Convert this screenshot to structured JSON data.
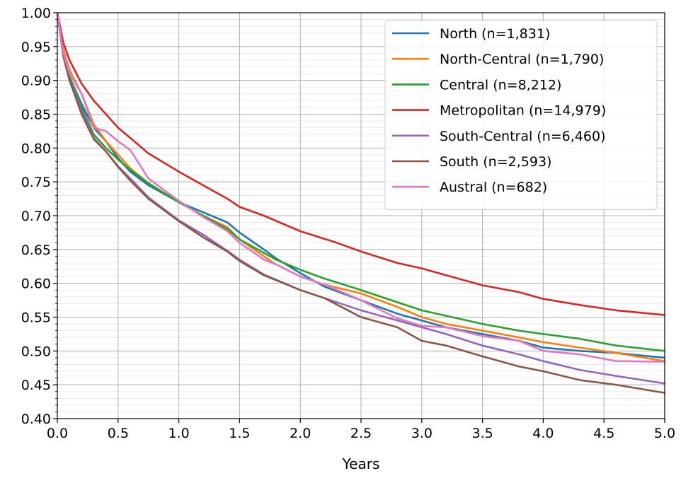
{
  "chart_data": {
    "type": "line",
    "title": "",
    "xlabel": "Years",
    "ylabel": "",
    "xlim": [
      0.0,
      5.0
    ],
    "ylim": [
      0.4,
      1.0
    ],
    "grid": true,
    "legend_position": "top-right",
    "x_ticks": [
      "0.0",
      "0.5",
      "1.0",
      "1.5",
      "2.0",
      "2.5",
      "3.0",
      "3.5",
      "4.0",
      "4.5",
      "5.0"
    ],
    "y_ticks": [
      "0.40",
      "0.45",
      "0.50",
      "0.55",
      "0.60",
      "0.65",
      "0.70",
      "0.75",
      "0.80",
      "0.85",
      "0.90",
      "0.95",
      "1.00"
    ],
    "series": [
      {
        "name": "North (n=1,831)",
        "color": "#1f77b4",
        "points": [
          [
            0,
            1.0
          ],
          [
            0.05,
            0.94
          ],
          [
            0.1,
            0.905
          ],
          [
            0.2,
            0.865
          ],
          [
            0.3,
            0.83
          ],
          [
            0.4,
            0.81
          ],
          [
            0.5,
            0.785
          ],
          [
            0.6,
            0.765
          ],
          [
            0.75,
            0.745
          ],
          [
            1.0,
            0.72
          ],
          [
            1.2,
            0.705
          ],
          [
            1.4,
            0.69
          ],
          [
            1.5,
            0.675
          ],
          [
            1.7,
            0.65
          ],
          [
            1.8,
            0.637
          ],
          [
            2.0,
            0.615
          ],
          [
            2.2,
            0.595
          ],
          [
            2.5,
            0.575
          ],
          [
            2.8,
            0.555
          ],
          [
            3.0,
            0.545
          ],
          [
            3.2,
            0.535
          ],
          [
            3.5,
            0.525
          ],
          [
            3.8,
            0.515
          ],
          [
            4.0,
            0.505
          ],
          [
            4.3,
            0.5
          ],
          [
            4.6,
            0.497
          ],
          [
            5.0,
            0.49
          ]
        ]
      },
      {
        "name": "North-Central (n=1,790)",
        "color": "#ff7f0e",
        "points": [
          [
            0,
            1.0
          ],
          [
            0.05,
            0.945
          ],
          [
            0.1,
            0.915
          ],
          [
            0.2,
            0.88
          ],
          [
            0.3,
            0.835
          ],
          [
            0.4,
            0.81
          ],
          [
            0.5,
            0.79
          ],
          [
            0.6,
            0.77
          ],
          [
            0.75,
            0.748
          ],
          [
            1.0,
            0.72
          ],
          [
            1.2,
            0.7
          ],
          [
            1.4,
            0.683
          ],
          [
            1.5,
            0.665
          ],
          [
            1.7,
            0.64
          ],
          [
            1.8,
            0.628
          ],
          [
            2.0,
            0.61
          ],
          [
            2.2,
            0.598
          ],
          [
            2.5,
            0.585
          ],
          [
            2.8,
            0.565
          ],
          [
            3.0,
            0.55
          ],
          [
            3.2,
            0.54
          ],
          [
            3.5,
            0.53
          ],
          [
            3.8,
            0.52
          ],
          [
            4.0,
            0.513
          ],
          [
            4.3,
            0.505
          ],
          [
            4.6,
            0.497
          ],
          [
            5.0,
            0.485
          ]
        ]
      },
      {
        "name": "Central (n=8,212)",
        "color": "#2ca02c",
        "points": [
          [
            0,
            1.0
          ],
          [
            0.05,
            0.94
          ],
          [
            0.1,
            0.905
          ],
          [
            0.2,
            0.86
          ],
          [
            0.3,
            0.82
          ],
          [
            0.4,
            0.8
          ],
          [
            0.5,
            0.783
          ],
          [
            0.6,
            0.768
          ],
          [
            0.75,
            0.748
          ],
          [
            1.0,
            0.72
          ],
          [
            1.2,
            0.7
          ],
          [
            1.4,
            0.68
          ],
          [
            1.5,
            0.665
          ],
          [
            1.7,
            0.645
          ],
          [
            1.8,
            0.635
          ],
          [
            2.0,
            0.62
          ],
          [
            2.2,
            0.607
          ],
          [
            2.5,
            0.59
          ],
          [
            2.8,
            0.572
          ],
          [
            3.0,
            0.56
          ],
          [
            3.2,
            0.552
          ],
          [
            3.5,
            0.54
          ],
          [
            3.8,
            0.53
          ],
          [
            4.0,
            0.525
          ],
          [
            4.3,
            0.518
          ],
          [
            4.6,
            0.508
          ],
          [
            5.0,
            0.5
          ]
        ]
      },
      {
        "name": "Metropolitan (n=14,979)",
        "color": "#d62728",
        "points": [
          [
            0,
            1.0
          ],
          [
            0.05,
            0.955
          ],
          [
            0.1,
            0.93
          ],
          [
            0.2,
            0.895
          ],
          [
            0.3,
            0.87
          ],
          [
            0.4,
            0.85
          ],
          [
            0.5,
            0.83
          ],
          [
            0.6,
            0.815
          ],
          [
            0.75,
            0.792
          ],
          [
            1.0,
            0.765
          ],
          [
            1.2,
            0.745
          ],
          [
            1.4,
            0.725
          ],
          [
            1.5,
            0.713
          ],
          [
            1.7,
            0.7
          ],
          [
            2.0,
            0.677
          ],
          [
            2.3,
            0.66
          ],
          [
            2.5,
            0.647
          ],
          [
            2.8,
            0.63
          ],
          [
            3.0,
            0.622
          ],
          [
            3.2,
            0.612
          ],
          [
            3.5,
            0.597
          ],
          [
            3.8,
            0.587
          ],
          [
            4.0,
            0.577
          ],
          [
            4.3,
            0.568
          ],
          [
            4.6,
            0.56
          ],
          [
            5.0,
            0.553
          ]
        ]
      },
      {
        "name": "South-Central (n=6,460)",
        "color": "#9467bd",
        "points": [
          [
            0,
            1.0
          ],
          [
            0.05,
            0.935
          ],
          [
            0.1,
            0.9
          ],
          [
            0.2,
            0.855
          ],
          [
            0.3,
            0.815
          ],
          [
            0.4,
            0.795
          ],
          [
            0.5,
            0.773
          ],
          [
            0.6,
            0.755
          ],
          [
            0.75,
            0.727
          ],
          [
            1.0,
            0.693
          ],
          [
            1.2,
            0.672
          ],
          [
            1.4,
            0.648
          ],
          [
            1.5,
            0.635
          ],
          [
            1.7,
            0.613
          ],
          [
            2.0,
            0.59
          ],
          [
            2.2,
            0.578
          ],
          [
            2.5,
            0.56
          ],
          [
            2.8,
            0.545
          ],
          [
            3.0,
            0.535
          ],
          [
            3.2,
            0.525
          ],
          [
            3.5,
            0.508
          ],
          [
            3.8,
            0.495
          ],
          [
            4.0,
            0.485
          ],
          [
            4.3,
            0.472
          ],
          [
            4.6,
            0.463
          ],
          [
            5.0,
            0.452
          ]
        ]
      },
      {
        "name": "South (n=2,593)",
        "color": "#8c564b",
        "points": [
          [
            0,
            1.0
          ],
          [
            0.05,
            0.935
          ],
          [
            0.1,
            0.9
          ],
          [
            0.2,
            0.85
          ],
          [
            0.3,
            0.813
          ],
          [
            0.4,
            0.795
          ],
          [
            0.5,
            0.772
          ],
          [
            0.6,
            0.752
          ],
          [
            0.75,
            0.725
          ],
          [
            1.0,
            0.692
          ],
          [
            1.2,
            0.668
          ],
          [
            1.4,
            0.647
          ],
          [
            1.5,
            0.633
          ],
          [
            1.7,
            0.612
          ],
          [
            2.0,
            0.59
          ],
          [
            2.2,
            0.578
          ],
          [
            2.5,
            0.55
          ],
          [
            2.8,
            0.535
          ],
          [
            3.0,
            0.515
          ],
          [
            3.2,
            0.508
          ],
          [
            3.5,
            0.492
          ],
          [
            3.8,
            0.477
          ],
          [
            4.0,
            0.47
          ],
          [
            4.3,
            0.457
          ],
          [
            4.6,
            0.45
          ],
          [
            5.0,
            0.438
          ]
        ]
      },
      {
        "name": "Austral (n=682)",
        "color": "#e377c2",
        "points": [
          [
            0,
            1.0
          ],
          [
            0.05,
            0.94
          ],
          [
            0.1,
            0.91
          ],
          [
            0.2,
            0.88
          ],
          [
            0.3,
            0.83
          ],
          [
            0.4,
            0.825
          ],
          [
            0.5,
            0.81
          ],
          [
            0.6,
            0.797
          ],
          [
            0.75,
            0.755
          ],
          [
            0.9,
            0.735
          ],
          [
            1.0,
            0.722
          ],
          [
            1.2,
            0.698
          ],
          [
            1.4,
            0.677
          ],
          [
            1.5,
            0.66
          ],
          [
            1.7,
            0.635
          ],
          [
            1.8,
            0.628
          ],
          [
            2.0,
            0.61
          ],
          [
            2.2,
            0.598
          ],
          [
            2.5,
            0.575
          ],
          [
            2.8,
            0.548
          ],
          [
            3.0,
            0.537
          ],
          [
            3.2,
            0.535
          ],
          [
            3.5,
            0.522
          ],
          [
            3.8,
            0.515
          ],
          [
            4.0,
            0.5
          ],
          [
            4.3,
            0.495
          ],
          [
            4.6,
            0.485
          ],
          [
            5.0,
            0.484
          ]
        ]
      }
    ]
  }
}
